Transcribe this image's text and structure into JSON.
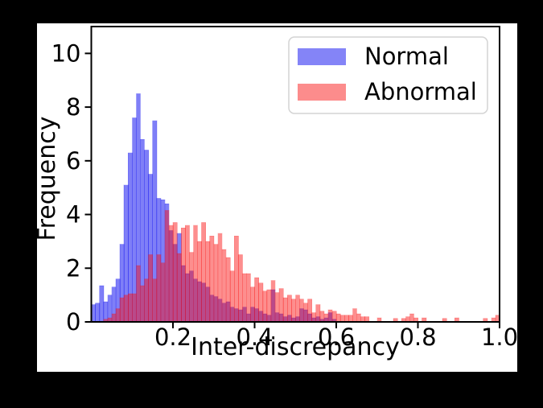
{
  "figure": {
    "background_color": "#000000",
    "canvas_color": "#ffffff",
    "spine_color": "#000000"
  },
  "legend": {
    "items": [
      {
        "label": "Normal",
        "swatch_color": "#8484f7"
      },
      {
        "label": "Abnormal",
        "swatch_color": "#fc8c8c"
      }
    ]
  },
  "chart_data": {
    "type": "bar",
    "subtype": "histogram",
    "title": "",
    "xlabel": "Inter-discrepancy",
    "ylabel": "Frequency",
    "xlim": [
      0,
      1.0
    ],
    "ylim": [
      0,
      11
    ],
    "grid": false,
    "legend_position": "upper right",
    "x_ticks": [
      0.2,
      0.4,
      0.6,
      0.8,
      1.0
    ],
    "x_tick_labels": [
      "0.2",
      "0.4",
      "0.6",
      "0.8",
      "1.0"
    ],
    "y_ticks": [
      0,
      2,
      4,
      6,
      8,
      10
    ],
    "y_tick_labels": [
      "0",
      "2",
      "4",
      "6",
      "8",
      "10"
    ],
    "bin_width": 0.01,
    "series": [
      {
        "name": "Normal",
        "color": "#0a0af0",
        "alpha": 0.52,
        "bin_start": 0.0,
        "values": [
          0.65,
          0.7,
          1.35,
          0.75,
          1.0,
          1.3,
          1.6,
          2.9,
          5.1,
          6.3,
          7.6,
          8.5,
          6.8,
          6.4,
          5.5,
          7.5,
          4.6,
          4.55,
          4.4,
          3.4,
          2.9,
          3.3,
          2.1,
          1.8,
          1.9,
          1.6,
          1.5,
          1.45,
          1.3,
          1.0,
          0.95,
          0.85,
          0.7,
          0.75,
          0.55,
          0.5,
          0.45,
          0.55,
          0.3,
          0.55,
          0.5,
          0.4,
          0.3,
          0.25,
          1.2,
          0.35,
          0.3,
          0.2,
          0.25,
          0.15,
          0.2,
          0.5,
          0.45,
          0.3,
          0.15,
          0.2,
          0.1,
          0.15,
          0.35,
          0.1
        ]
      },
      {
        "name": "Abnormal",
        "color": "#fa0f0f",
        "alpha": 0.47,
        "bin_start": 0.0,
        "values": [
          0,
          0,
          0,
          0.1,
          0.15,
          0.3,
          0.5,
          0.9,
          1.0,
          1.05,
          1.05,
          2.1,
          1.35,
          1.6,
          2.5,
          1.6,
          2.5,
          2.2,
          4.15,
          3.6,
          3.7,
          2.55,
          3.5,
          3.6,
          2.6,
          3.6,
          3.0,
          3.7,
          3.0,
          3.2,
          2.9,
          3.3,
          2.7,
          2.4,
          1.9,
          3.2,
          2.5,
          1.8,
          1.8,
          1.3,
          1.65,
          1.45,
          1.15,
          1.2,
          1.55,
          1.1,
          1.25,
          0.9,
          1.0,
          0.85,
          1.0,
          0.85,
          0.7,
          0.85,
          0.35,
          0.65,
          0.4,
          0.3,
          0.45,
          0.4,
          0.3,
          0.25,
          0.25,
          0.25,
          0.5,
          0.3,
          0.2,
          0.2,
          0,
          0,
          0.15,
          0,
          0,
          0,
          0.13,
          0,
          0.13,
          0.2,
          0.3,
          0.15,
          0,
          0.15,
          0,
          0,
          0,
          0,
          0.13,
          0,
          0,
          0.15,
          0,
          0,
          0,
          0,
          0,
          0,
          0.13,
          0,
          0.15,
          0.25
        ]
      }
    ]
  }
}
